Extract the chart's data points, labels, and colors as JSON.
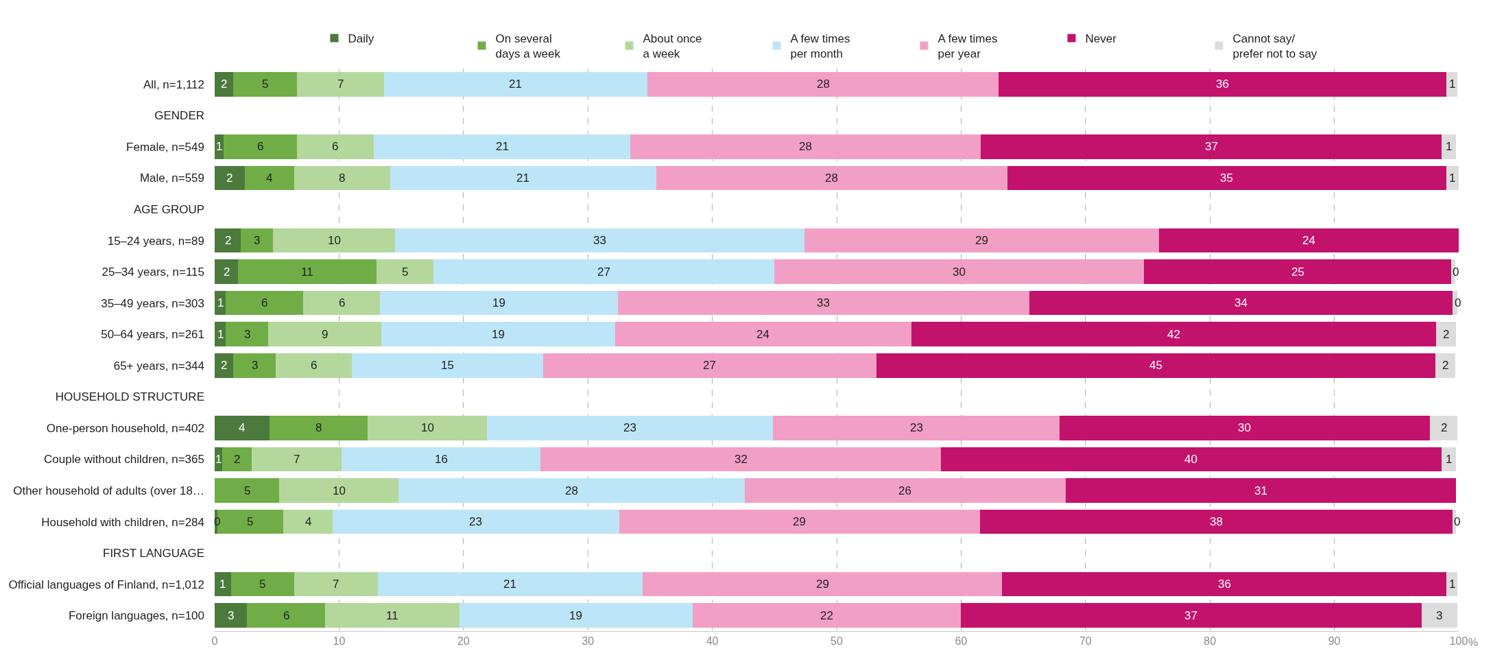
{
  "chart_data": {
    "type": "bar",
    "orientation": "horizontal",
    "stacked": true,
    "grid": "x",
    "legend": "top",
    "xlabel": "%",
    "categories": [
      "All, n=1,112",
      "GENDER",
      "Female, n=549",
      "Male, n=559",
      "AGE GROUP",
      "15–24 years, n=89",
      "25–34 years, n=115",
      "35–49 years, n=303",
      "50–64 years, n=261",
      "65+ years, n=344",
      "HOUSEHOLD STRUCTURE",
      "One-person household, n=402",
      "Couple without children, n=365",
      "Other household of adults (over 18…",
      "Household with children, n=284",
      "FIRST LANGUAGE",
      "Official languages of Finland, n=1,012",
      "Foreign languages, n=100"
    ],
    "xlim": [
      0,
      100
    ],
    "xticks": [
      0,
      10,
      20,
      30,
      40,
      50,
      60,
      70,
      80,
      90,
      100
    ],
    "series": [
      {
        "name": "Daily",
        "color": "#4b7a3c",
        "values": [
          1.5,
          null,
          0.7,
          2.4,
          null,
          2.1,
          1.9,
          0.9,
          0.9,
          1.5,
          null,
          4.4,
          0.6,
          null,
          0.2,
          null,
          1.3,
          2.6
        ],
        "value_labels": [
          "2",
          null,
          "1",
          "2",
          null,
          "2",
          "2",
          "1",
          "1",
          "2",
          null,
          "4",
          "1",
          null,
          "0",
          null,
          "1",
          "3"
        ]
      },
      {
        "name": "On several\ndays a week",
        "color": "#70ad47",
        "values": [
          5.1,
          null,
          5.9,
          4.0,
          null,
          2.6,
          11.1,
          6.2,
          3.4,
          3.4,
          null,
          7.9,
          2.4,
          5.2,
          5.3,
          null,
          5.1,
          6.3
        ],
        "value_labels": [
          "5",
          null,
          "6",
          "4",
          null,
          "3",
          "11",
          "6",
          "3",
          "3",
          null,
          "8",
          "2",
          "5",
          "5",
          null,
          "5",
          "6"
        ]
      },
      {
        "name": "About once\na week",
        "color": "#b4d89c",
        "values": [
          7.0,
          null,
          6.2,
          7.7,
          null,
          9.8,
          4.6,
          6.2,
          9.1,
          6.1,
          null,
          9.6,
          7.2,
          9.6,
          4.0,
          null,
          6.7,
          10.8
        ],
        "value_labels": [
          "7",
          null,
          "6",
          "8",
          null,
          "10",
          "5",
          "6",
          "9",
          "6",
          null,
          "10",
          "7",
          "10",
          "4",
          null,
          "7",
          "11"
        ]
      },
      {
        "name": "A few times\nper month",
        "color": "#bde5f8",
        "values": [
          21.2,
          null,
          20.6,
          21.4,
          null,
          32.9,
          27.4,
          19.1,
          18.8,
          15.4,
          null,
          23.0,
          16.0,
          27.8,
          23.0,
          null,
          21.3,
          18.7
        ],
        "value_labels": [
          "21",
          null,
          "21",
          "21",
          null,
          "33",
          "27",
          "19",
          "19",
          "15",
          null,
          "23",
          "16",
          "28",
          "23",
          null,
          "21",
          "19"
        ]
      },
      {
        "name": "A few times\nper year",
        "color": "#f29fc6",
        "values": [
          28.2,
          null,
          28.2,
          28.2,
          null,
          28.5,
          29.7,
          33.1,
          23.8,
          26.8,
          null,
          23.0,
          32.2,
          25.8,
          29.0,
          null,
          28.9,
          21.6
        ],
        "value_labels": [
          "28",
          null,
          "28",
          "28",
          null,
          "29",
          "30",
          "33",
          "24",
          "27",
          null,
          "23",
          "32",
          "26",
          "29",
          null,
          "29",
          "22"
        ]
      },
      {
        "name": "Never",
        "color": "#c2126c",
        "values": [
          36.0,
          null,
          37.0,
          35.3,
          null,
          24.1,
          24.7,
          34.0,
          42.2,
          44.9,
          null,
          29.8,
          40.2,
          31.4,
          38.0,
          null,
          35.7,
          37.0
        ],
        "value_labels": [
          "36",
          null,
          "37",
          "35",
          null,
          "24",
          "25",
          "34",
          "42",
          "45",
          null,
          "30",
          "40",
          "31",
          "38",
          null,
          "36",
          "37"
        ]
      },
      {
        "name": "Cannot say/\nprefer not to say",
        "color": "#dcdcdc",
        "values": [
          0.9,
          null,
          1.2,
          1.0,
          null,
          null,
          0.3,
          0.4,
          1.6,
          1.6,
          null,
          2.2,
          1.2,
          null,
          0.3,
          null,
          0.9,
          2.9
        ],
        "value_labels": [
          "1",
          null,
          "1",
          "1",
          null,
          null,
          "0",
          "0",
          "2",
          "2",
          null,
          "2",
          "1",
          null,
          "0",
          null,
          "1",
          "3"
        ]
      }
    ]
  }
}
